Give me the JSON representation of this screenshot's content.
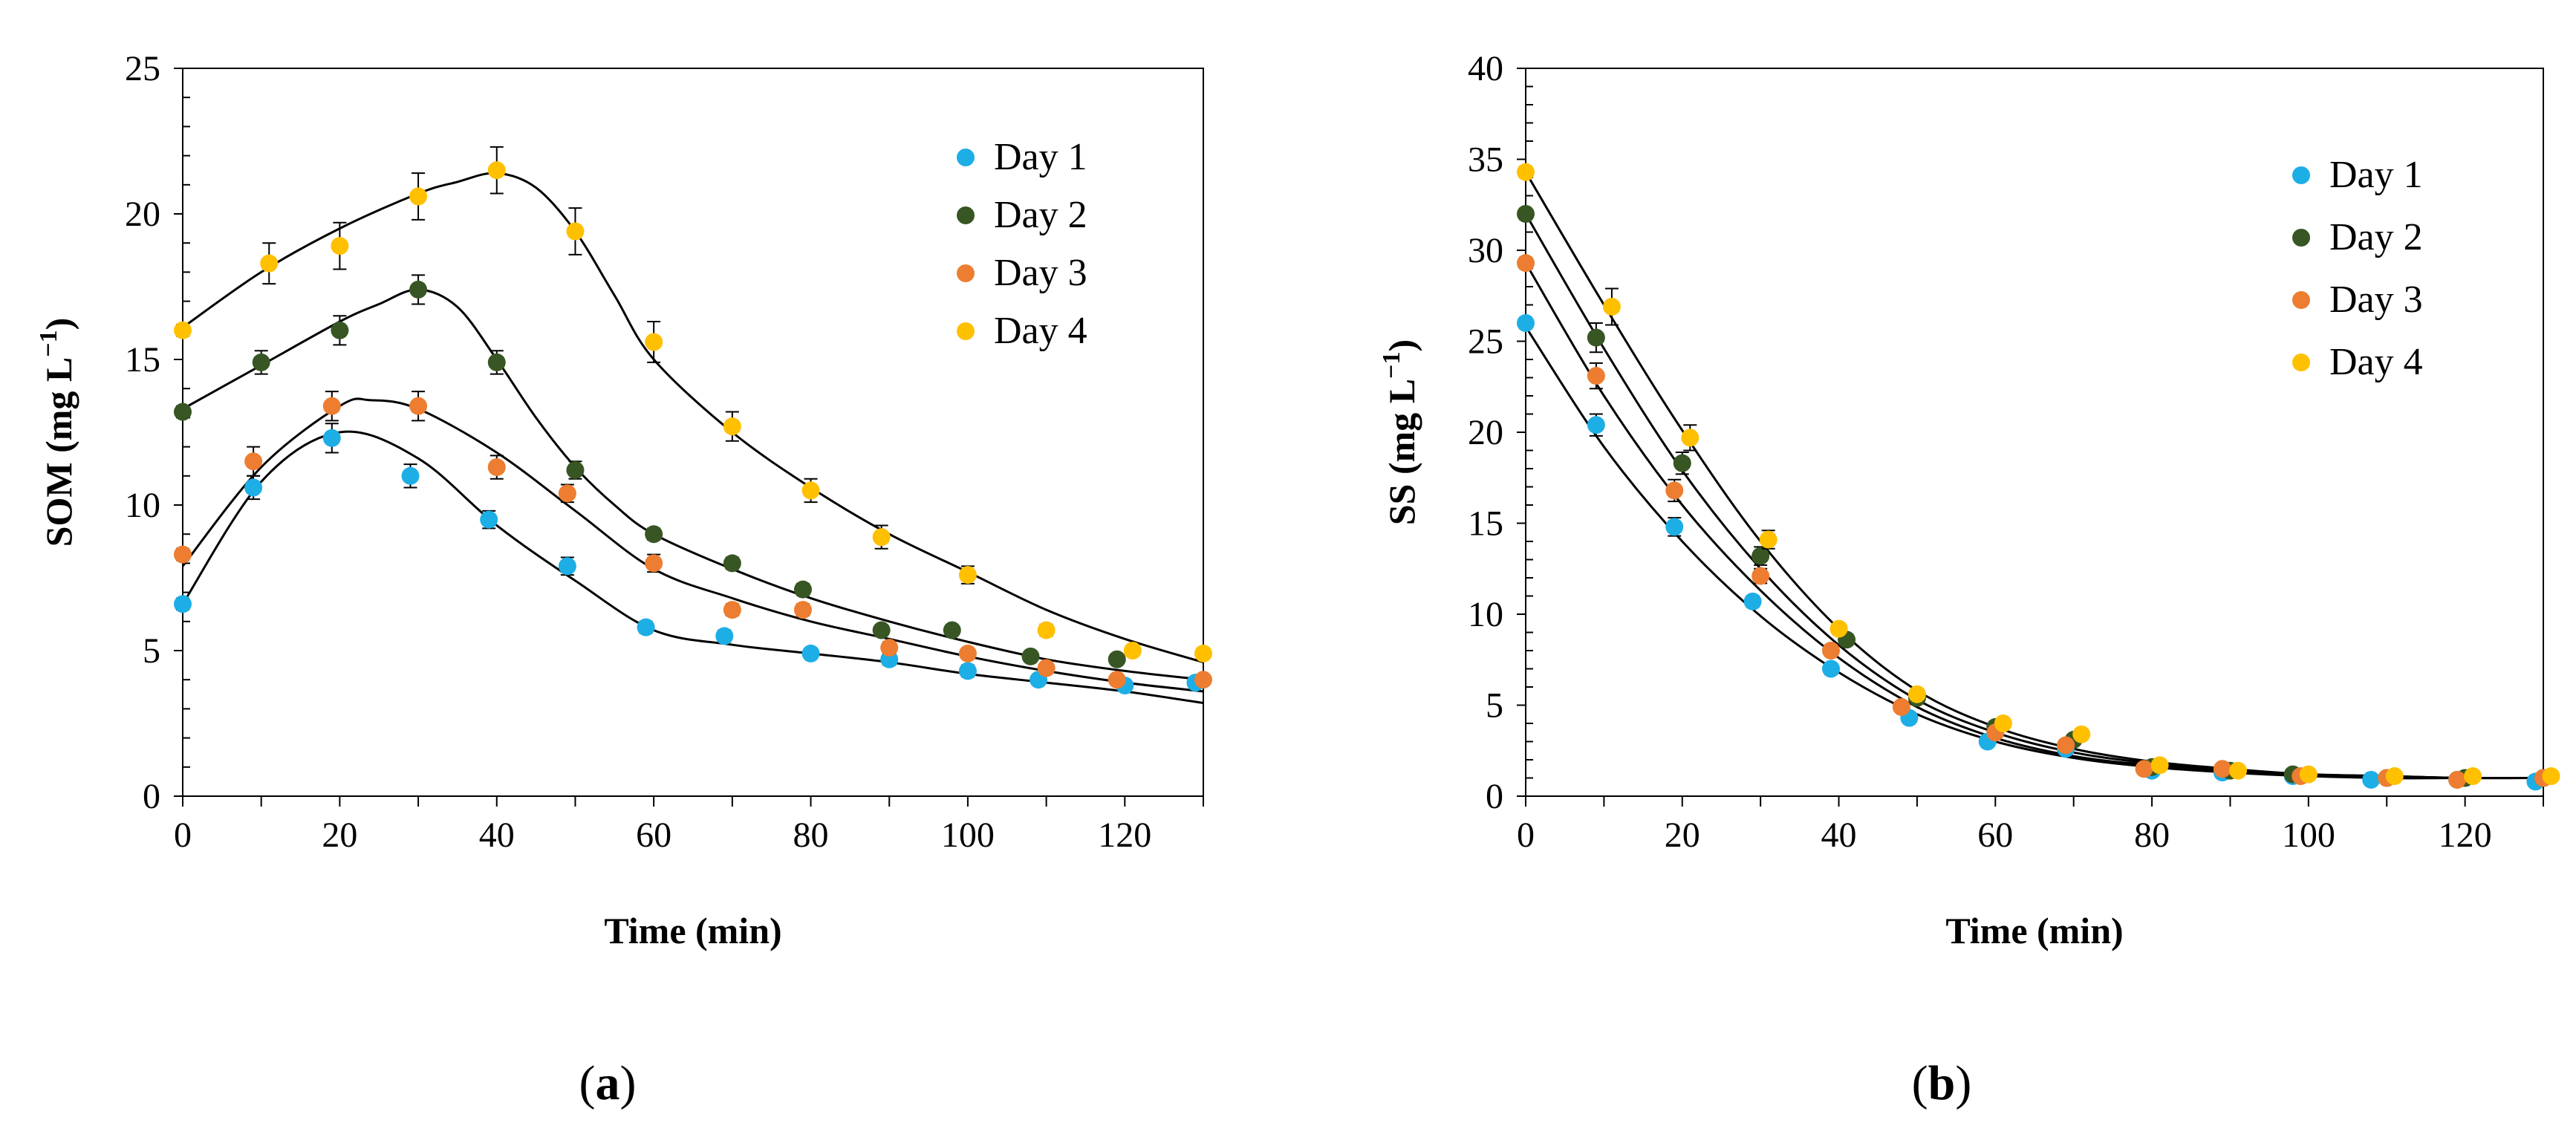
{
  "chart_data": [
    {
      "panel": "a",
      "type": "scatter",
      "xlabel": "Time (min)",
      "ylabel_main": "SOM (mg L",
      "ylabel_sup": "−1",
      "ylabel_close": ")",
      "xlim": [
        0,
        130
      ],
      "ylim": [
        0,
        25
      ],
      "xticks": [
        0,
        20,
        40,
        60,
        80,
        100,
        120
      ],
      "yticks": [
        0,
        5,
        10,
        15,
        20,
        25
      ],
      "legend_position": "top-right",
      "panel_label": {
        "open": "(",
        "letter": "a",
        "close": ")"
      },
      "series": [
        {
          "name": "Day 1",
          "color": "#1DAEE6",
          "x": [
            0,
            9,
            19,
            29,
            39,
            49,
            59,
            69,
            80,
            90,
            100,
            109,
            120,
            129
          ],
          "y": [
            6.6,
            10.6,
            12.3,
            11.0,
            9.5,
            7.9,
            5.8,
            5.5,
            4.9,
            4.7,
            4.3,
            4.0,
            3.8,
            3.9
          ],
          "err": [
            0.2,
            0.4,
            0.5,
            0.4,
            0.3,
            0.3,
            0.2,
            0.2,
            0.1,
            0.2,
            0.2,
            0.1,
            0.1,
            0.1
          ],
          "fit_x": [
            0,
            10,
            20,
            30,
            40,
            50,
            60,
            70,
            80,
            90,
            100,
            110,
            120,
            130
          ],
          "fit_y": [
            6.6,
            10.8,
            12.5,
            11.6,
            9.3,
            7.4,
            5.7,
            5.2,
            4.9,
            4.6,
            4.2,
            3.9,
            3.6,
            3.2
          ]
        },
        {
          "name": "Day 2",
          "color": "#375623",
          "x": [
            0,
            10,
            20,
            30,
            40,
            50,
            60,
            70,
            79,
            89,
            98,
            108,
            119
          ],
          "y": [
            13.2,
            14.9,
            16.0,
            17.4,
            14.9,
            11.2,
            9.0,
            8.0,
            7.1,
            5.7,
            5.7,
            4.8,
            4.7
          ],
          "err": [
            0.2,
            0.4,
            0.5,
            0.5,
            0.4,
            0.3,
            0.2,
            0.2,
            0.2,
            0.1,
            0.1,
            0.1,
            0.1
          ],
          "fit_x": [
            0,
            10,
            20,
            25,
            30,
            35,
            40,
            45,
            50,
            55,
            60,
            70,
            80,
            90,
            100,
            110,
            120,
            130
          ],
          "fit_y": [
            13.3,
            14.8,
            16.3,
            16.9,
            17.4,
            16.8,
            15.0,
            13.0,
            11.3,
            10.0,
            9.0,
            7.8,
            6.8,
            6.0,
            5.3,
            4.7,
            4.3,
            4.0
          ]
        },
        {
          "name": "Day 3",
          "color": "#ED7D31",
          "x": [
            0,
            9,
            19,
            30,
            40,
            49,
            60,
            70,
            79,
            90,
            100,
            110,
            119,
            130
          ],
          "y": [
            8.3,
            11.5,
            13.4,
            13.4,
            11.3,
            10.4,
            8.0,
            6.4,
            6.4,
            5.1,
            4.9,
            4.4,
            4.0,
            4.0
          ],
          "err": [
            0.2,
            0.5,
            0.5,
            0.5,
            0.4,
            0.3,
            0.3,
            0.2,
            0.2,
            0.2,
            0.1,
            0.1,
            0.1,
            0.1
          ],
          "fit_x": [
            0,
            10,
            20,
            24,
            30,
            40,
            50,
            60,
            70,
            80,
            90,
            100,
            110,
            120,
            130
          ],
          "fit_y": [
            7.9,
            11.3,
            13.4,
            13.6,
            13.3,
            11.8,
            9.8,
            7.8,
            6.8,
            6.0,
            5.4,
            4.8,
            4.3,
            3.9,
            3.6
          ]
        },
        {
          "name": "Day 4",
          "color": "#FFC000",
          "x": [
            0,
            11,
            20,
            30,
            40,
            50,
            60,
            70,
            80,
            89,
            100,
            110,
            121,
            130
          ],
          "y": [
            16.0,
            18.3,
            18.9,
            20.6,
            21.5,
            19.4,
            15.6,
            12.7,
            10.5,
            8.9,
            7.6,
            5.7,
            5.0,
            4.9
          ],
          "err": [
            0.2,
            0.7,
            0.8,
            0.8,
            0.8,
            0.8,
            0.7,
            0.5,
            0.4,
            0.4,
            0.3,
            0.2,
            0.1,
            0.1
          ],
          "fit_x": [
            0,
            10,
            20,
            30,
            35,
            40,
            45,
            50,
            55,
            60,
            70,
            80,
            90,
            100,
            110,
            120,
            130
          ],
          "fit_y": [
            16.1,
            18.0,
            19.5,
            20.7,
            21.1,
            21.4,
            20.9,
            19.4,
            17.2,
            15.0,
            12.5,
            10.6,
            9.0,
            7.7,
            6.4,
            5.4,
            4.6
          ]
        }
      ]
    },
    {
      "panel": "b",
      "type": "scatter",
      "xlabel": "Time (min)",
      "ylabel_main": "SS (mg L",
      "ylabel_sup": "−1",
      "ylabel_close": ")",
      "xlim": [
        0,
        130
      ],
      "ylim": [
        0,
        40
      ],
      "xticks": [
        0,
        20,
        40,
        60,
        80,
        100,
        120
      ],
      "yticks": [
        0,
        5,
        10,
        15,
        20,
        25,
        30,
        35,
        40
      ],
      "legend_position": "top-right",
      "panel_label": {
        "open": "(",
        "letter": "b",
        "close": ")"
      },
      "series": [
        {
          "name": "Day 1",
          "color": "#1DAEE6",
          "x": [
            0,
            9,
            19,
            29,
            39,
            49,
            59,
            69,
            80,
            89,
            98,
            108,
            119,
            129
          ],
          "y": [
            26.0,
            20.4,
            14.8,
            10.7,
            7.0,
            4.3,
            3.0,
            2.6,
            1.4,
            1.3,
            1.1,
            0.9,
            0.9,
            0.8
          ],
          "err": [
            0.3,
            0.6,
            0.5,
            0.3,
            0.3,
            0.2,
            0.2,
            0.2,
            0.1,
            0.1,
            0.1,
            0.1,
            0.1,
            0.1
          ],
          "fit_x": [
            0,
            10,
            20,
            30,
            40,
            50,
            60,
            70,
            80,
            90,
            100,
            110,
            120,
            130
          ],
          "fit_y": [
            25.8,
            19.2,
            14.0,
            9.9,
            6.8,
            4.5,
            3.0,
            2.1,
            1.6,
            1.3,
            1.1,
            1.0,
            1.0,
            1.0
          ]
        },
        {
          "name": "Day 2",
          "color": "#375623",
          "x": [
            0,
            9,
            20,
            30,
            41,
            50,
            60,
            70,
            80,
            90,
            98,
            110,
            120,
            130
          ],
          "y": [
            32.0,
            25.2,
            18.3,
            13.2,
            8.6,
            5.4,
            3.8,
            3.1,
            1.6,
            1.4,
            1.2,
            1.0,
            1.0,
            1.0
          ],
          "err": [
            0.3,
            0.8,
            0.6,
            0.5,
            0.3,
            0.3,
            0.2,
            0.2,
            0.1,
            0.1,
            0.1,
            0.1,
            0.1,
            0.1
          ],
          "fit_x": [
            0,
            10,
            20,
            30,
            40,
            50,
            60,
            70,
            80,
            90,
            100,
            110,
            120,
            130
          ],
          "fit_y": [
            32.0,
            24.6,
            17.9,
            12.5,
            8.3,
            5.3,
            3.5,
            2.4,
            1.8,
            1.4,
            1.2,
            1.1,
            1.0,
            1.0
          ]
        },
        {
          "name": "Day 3",
          "color": "#ED7D31",
          "x": [
            0,
            9,
            19,
            30,
            39,
            48,
            60,
            69,
            79,
            89,
            99,
            110,
            119,
            130
          ],
          "y": [
            29.3,
            23.1,
            16.8,
            12.1,
            8.0,
            4.9,
            3.5,
            2.8,
            1.5,
            1.5,
            1.1,
            1.0,
            0.9,
            1.0
          ],
          "err": [
            0.3,
            0.7,
            0.6,
            0.4,
            0.3,
            0.2,
            0.2,
            0.2,
            0.1,
            0.1,
            0.1,
            0.1,
            0.1,
            0.1
          ],
          "fit_x": [
            0,
            10,
            20,
            30,
            40,
            50,
            60,
            70,
            80,
            90,
            100,
            110,
            120,
            130
          ],
          "fit_y": [
            29.3,
            22.0,
            16.0,
            11.3,
            7.6,
            4.9,
            3.2,
            2.2,
            1.7,
            1.4,
            1.2,
            1.0,
            1.0,
            1.0
          ]
        },
        {
          "name": "Day 4",
          "color": "#FFC000",
          "x": [
            0,
            11,
            21,
            31,
            40,
            50,
            61,
            71,
            81,
            91,
            100,
            111,
            121,
            131
          ],
          "y": [
            34.3,
            26.9,
            19.7,
            14.1,
            9.2,
            5.6,
            4.0,
            3.4,
            1.7,
            1.4,
            1.2,
            1.1,
            1.1,
            1.1
          ],
          "err": [
            0.3,
            1.0,
            0.7,
            0.5,
            0.3,
            0.3,
            0.2,
            0.2,
            0.1,
            0.1,
            0.1,
            0.1,
            0.1,
            0.1
          ],
          "fit_x": [
            0,
            10,
            20,
            30,
            40,
            50,
            60,
            70,
            80,
            90,
            100,
            110,
            120,
            130
          ],
          "fit_y": [
            34.3,
            27.0,
            20.1,
            14.0,
            9.2,
            5.8,
            3.8,
            2.6,
            1.9,
            1.5,
            1.2,
            1.1,
            1.0,
            1.0
          ]
        }
      ]
    }
  ]
}
